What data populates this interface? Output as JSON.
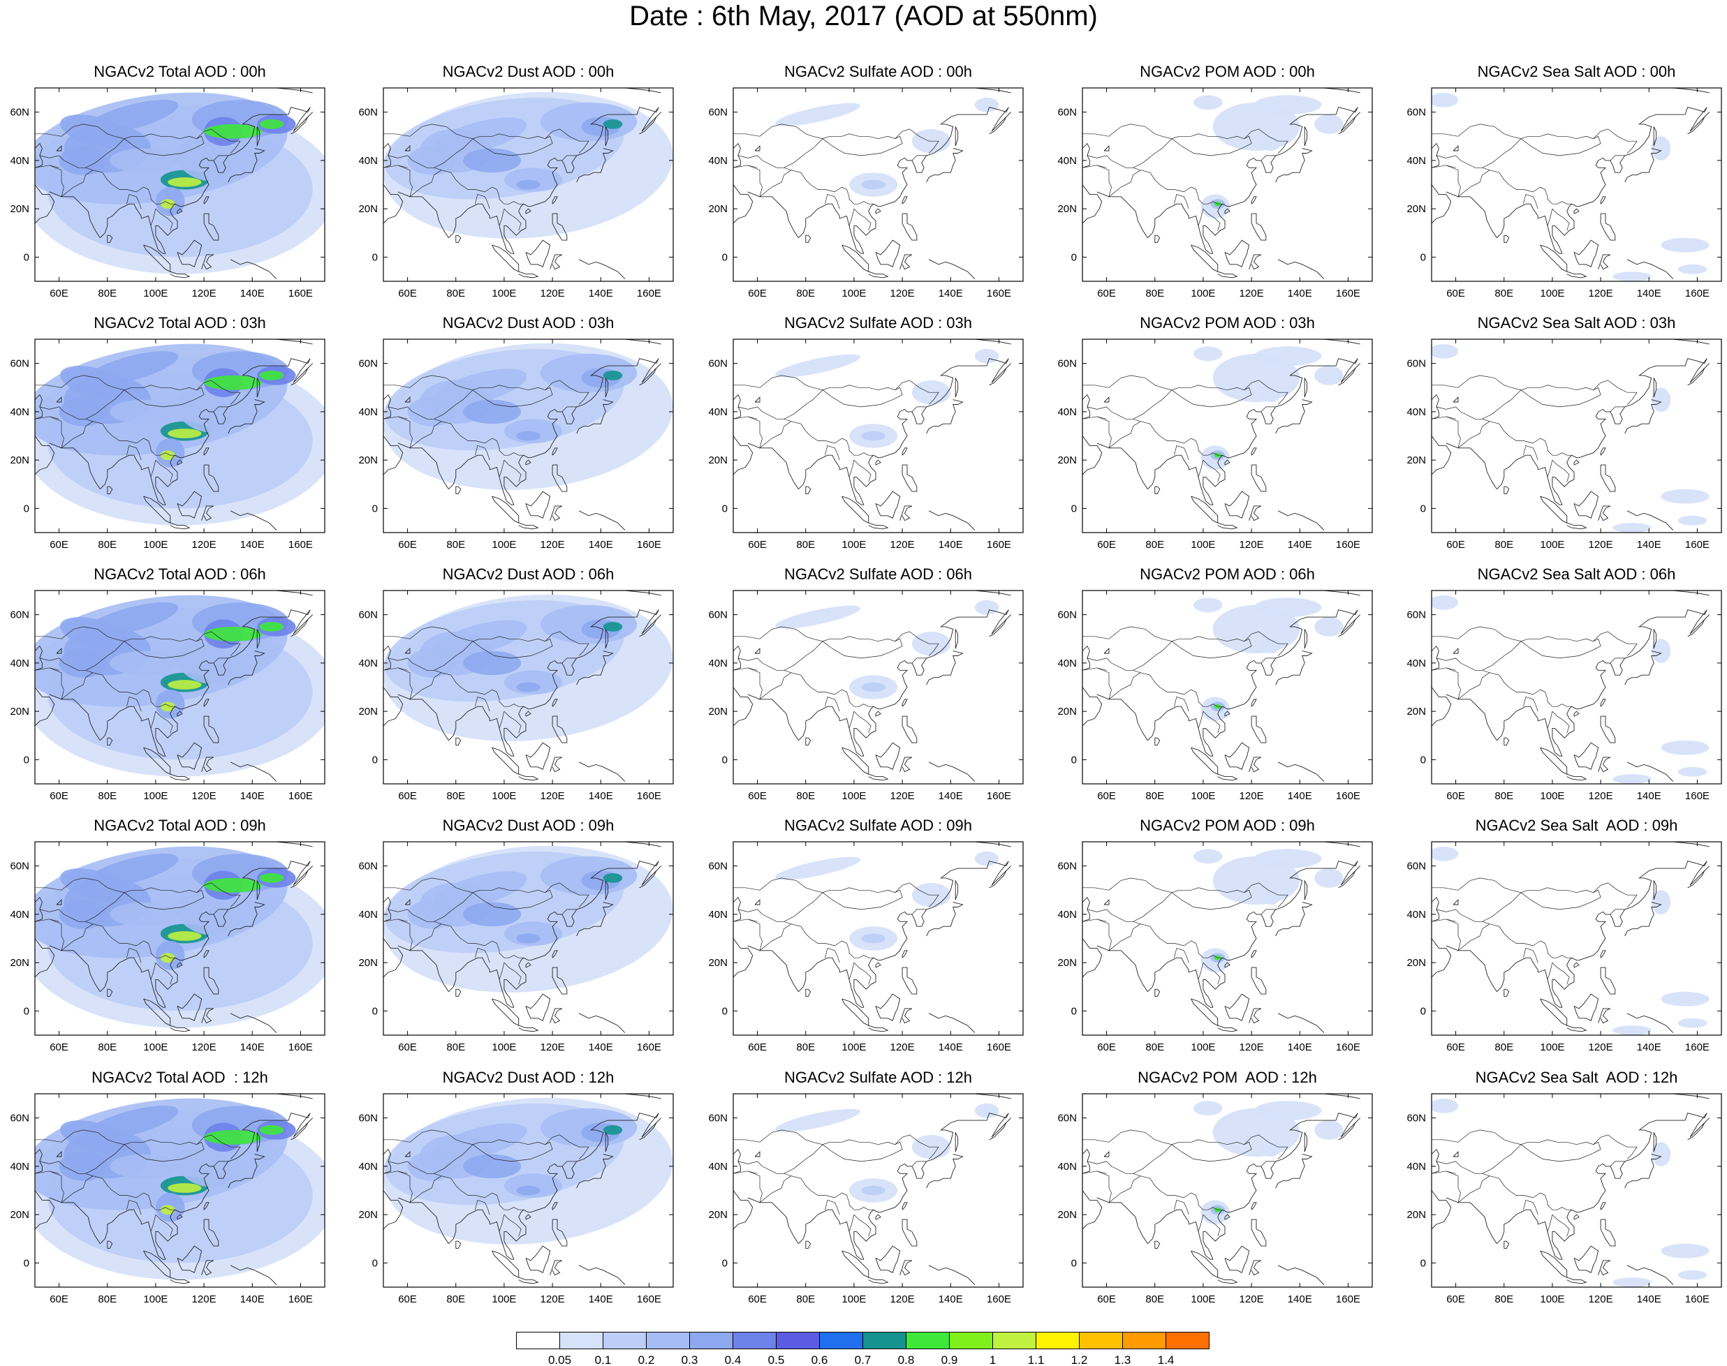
{
  "title": "Date : 6th May, 2017 (AOD at 550nm)",
  "rows": [
    {
      "panels": [
        {
          "title": "NGACv2 Total AOD : 00h",
          "field": "total"
        },
        {
          "title": "NGACv2 Dust AOD : 00h",
          "field": "dust"
        },
        {
          "title": "NGACv2 Sulfate AOD : 00h",
          "field": "sulfate"
        },
        {
          "title": "NGACv2 POM AOD : 00h",
          "field": "pom"
        },
        {
          "title": "NGACv2 Sea Salt AOD : 00h",
          "field": "seasalt"
        }
      ]
    },
    {
      "panels": [
        {
          "title": "NGACv2 Total AOD : 03h",
          "field": "total"
        },
        {
          "title": "NGACv2 Dust AOD : 03h",
          "field": "dust"
        },
        {
          "title": "NGACv2 Sulfate AOD : 03h",
          "field": "sulfate"
        },
        {
          "title": "NGACv2 POM AOD : 03h",
          "field": "pom"
        },
        {
          "title": "NGACv2 Sea Salt AOD : 03h",
          "field": "seasalt"
        }
      ]
    },
    {
      "panels": [
        {
          "title": "NGACv2 Total AOD : 06h",
          "field": "total"
        },
        {
          "title": "NGACv2 Dust AOD : 06h",
          "field": "dust"
        },
        {
          "title": "NGACv2 Sulfate AOD : 06h",
          "field": "sulfate"
        },
        {
          "title": "NGACv2 POM AOD : 06h",
          "field": "pom"
        },
        {
          "title": "NGACv2 Sea Salt AOD : 06h",
          "field": "seasalt"
        }
      ]
    },
    {
      "panels": [
        {
          "title": "NGACv2 Total AOD : 09h",
          "field": "total"
        },
        {
          "title": "NGACv2 Dust AOD : 09h",
          "field": "dust"
        },
        {
          "title": "NGACv2 Sulfate AOD : 09h",
          "field": "sulfate"
        },
        {
          "title": "NGACv2 POM AOD : 09h",
          "field": "pom"
        },
        {
          "title": "NGACv2 Sea Salt  AOD : 09h",
          "field": "seasalt"
        }
      ]
    },
    {
      "panels": [
        {
          "title": "NGACv2 Total AOD  : 12h",
          "field": "total"
        },
        {
          "title": "NGACv2 Dust AOD : 12h",
          "field": "dust"
        },
        {
          "title": "NGACv2 Sulfate AOD : 12h",
          "field": "sulfate"
        },
        {
          "title": "NGACv2 POM  AOD : 12h",
          "field": "pom"
        },
        {
          "title": "NGACv2 Sea Salt  AOD : 12h",
          "field": "seasalt"
        }
      ]
    }
  ],
  "x_ticks": [
    "60E",
    "80E",
    "100E",
    "120E",
    "140E",
    "160E"
  ],
  "x_tick_values_deg": [
    60,
    80,
    100,
    120,
    140,
    160
  ],
  "y_ticks": [
    "60N",
    "40N",
    "20N",
    "0"
  ],
  "y_tick_values_deg": [
    60,
    40,
    20,
    0
  ],
  "lon_range_deg": [
    50,
    170
  ],
  "lat_range_deg": [
    -10,
    70
  ],
  "colorbar": {
    "labels": [
      "0.05",
      "0.1",
      "0.2",
      "0.3",
      "0.4",
      "0.5",
      "0.6",
      "0.7",
      "0.8",
      "0.9",
      "1",
      "1.1",
      "1.2",
      "1.3",
      "1.4"
    ],
    "colors": [
      "#ffffff",
      "#d6e2fa",
      "#bccdf7",
      "#a6bcf4",
      "#8ea8f0",
      "#6e82eb",
      "#5a5ce3",
      "#1f6fef",
      "#14938f",
      "#3ee73a",
      "#80f01c",
      "#c0f040",
      "#fff300",
      "#ffc000",
      "#ff9a00",
      "#ff7000",
      "#ff2a10"
    ]
  }
}
